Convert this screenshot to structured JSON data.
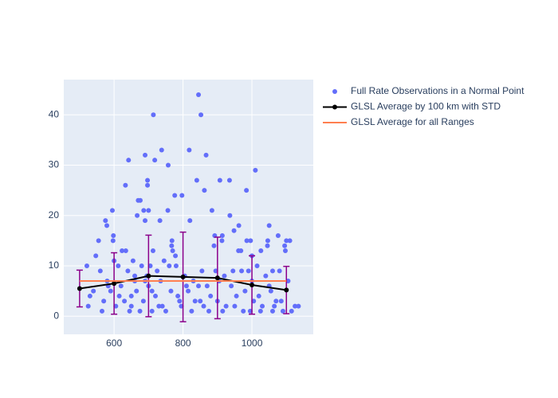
{
  "chart_data": {
    "type": "scatter",
    "xlim": [
      454,
      1178
    ],
    "ylim": [
      -3.6,
      47
    ],
    "xticks": [
      600,
      800,
      1000
    ],
    "yticks": [
      0,
      10,
      20,
      30,
      40
    ],
    "grid": true,
    "legend": "right",
    "series": [
      {
        "name": "Full Rate Observations in a Normal Point",
        "mode": "markers",
        "color": "#636efa",
        "x": [
          714,
          845,
          852,
          642,
          690,
          718,
          738,
          757,
          818,
          867,
          1010,
          935,
          840,
          907,
          984,
          862,
          797,
          776,
          633,
          697,
          697,
          595,
          670,
          676,
          667,
          700,
          686,
          756,
          884,
          936,
          820,
          575,
          690,
          733,
          579,
          962,
          1050,
          948,
          1076,
          1100,
          1110,
          1046,
          985,
          996,
          913,
          914,
          892,
          555,
          597,
          598,
          768,
          767,
          890,
          1095,
          1045,
          1026,
          961,
          968,
          770,
          1097,
          623,
          713,
          547,
          778,
          1000,
          634,
          521,
          530,
          560,
          583,
          600,
          612,
          640,
          655,
          660,
          680,
          705,
          725,
          745,
          760,
          780,
          805,
          830,
          855,
          870,
          895,
          920,
          945,
          970,
          990,
          1015,
          1040,
          1060,
          1080,
          1105,
          1125,
          540,
          570,
          590,
          615,
          630,
          650,
          665,
          685,
          700,
          720,
          740,
          765,
          790,
          810,
          835,
          860,
          880,
          900,
          925,
          955,
          975,
          1005,
          1030,
          1055,
          1070,
          1090,
          1115,
          1135,
          525,
          565,
          605,
          645,
          675,
          710,
          750,
          795,
          825,
          850,
          875,
          915,
          950,
          995,
          1025,
          1065,
          580,
          620,
          660,
          695,
          735,
          785,
          815,
          845,
          905,
          940,
          980,
          1020,
          1050,
          1085,
          710,
          730,
          690,
          650,
          1000,
          1060
        ],
        "values": [
          40,
          44,
          40,
          31,
          32,
          31,
          33,
          30,
          33,
          32,
          29,
          27,
          27,
          27,
          25,
          25,
          24,
          24,
          26,
          27,
          26,
          21,
          23,
          23,
          20,
          21,
          21,
          21,
          21,
          20,
          19,
          19,
          19,
          19,
          18,
          18,
          18,
          17,
          16,
          15,
          15,
          15,
          15,
          15,
          15,
          16,
          16,
          15,
          15,
          16,
          15,
          14,
          14,
          14,
          14,
          13,
          13,
          13,
          13,
          13,
          13,
          13,
          12,
          12,
          12,
          13,
          10,
          4,
          9,
          6,
          11,
          10,
          9,
          11,
          8,
          10,
          10,
          9,
          11,
          10,
          10,
          8,
          7,
          9,
          6,
          9,
          8,
          9,
          9,
          9,
          10,
          8,
          9,
          9,
          7,
          2,
          5,
          3,
          5,
          4,
          3,
          2,
          5,
          3,
          6,
          4,
          2,
          5,
          3,
          6,
          3,
          2,
          4,
          3,
          2,
          4,
          1,
          3,
          2,
          5,
          3,
          1,
          1,
          2,
          2,
          1,
          2,
          1,
          1,
          1,
          1,
          2,
          1,
          3,
          1,
          1,
          2,
          1,
          1,
          2,
          7,
          6,
          7,
          8,
          7,
          4,
          5,
          6,
          7,
          6,
          5,
          4,
          6,
          3,
          5,
          2,
          7,
          4,
          7,
          1
        ]
      },
      {
        "name": "GLSL Average by 100 km with STD",
        "mode": "lines+markers",
        "color": "#000000",
        "error_color": "#8b008b",
        "x": [
          500,
          600,
          700,
          800,
          900,
          1000,
          1100
        ],
        "values": [
          5.5,
          6.5,
          8.0,
          7.8,
          7.6,
          6.2,
          5.2
        ],
        "error": [
          3.65,
          6.1,
          8.1,
          8.9,
          8.1,
          5.8,
          4.7
        ]
      },
      {
        "name": "GLSL Average for all Ranges",
        "mode": "lines",
        "color": "#ff7f50",
        "x": [
          500,
          1100
        ],
        "values": [
          7.0,
          7.0
        ]
      }
    ]
  }
}
